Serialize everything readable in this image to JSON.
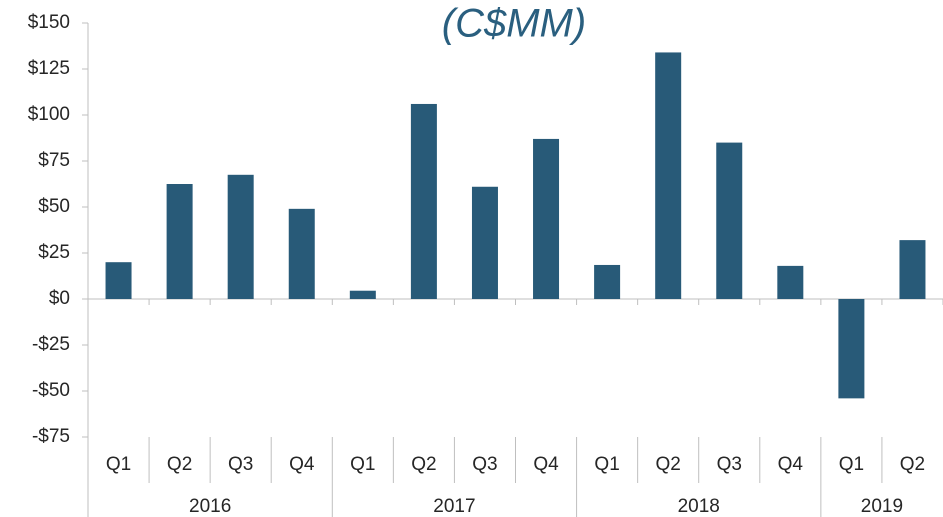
{
  "chart_data": {
    "type": "bar",
    "title": "(C$MM)",
    "color": "#285a78",
    "groups": [
      {
        "label": "2016",
        "categories": [
          "Q1",
          "Q2",
          "Q3",
          "Q4"
        ],
        "values": [
          20,
          62.5,
          67.5,
          49
        ]
      },
      {
        "label": "2017",
        "categories": [
          "Q1",
          "Q2",
          "Q3",
          "Q4"
        ],
        "values": [
          4.5,
          106,
          61,
          87
        ]
      },
      {
        "label": "2018",
        "categories": [
          "Q1",
          "Q2",
          "Q3",
          "Q4"
        ],
        "values": [
          18.5,
          134,
          85,
          18
        ]
      },
      {
        "label": "2019",
        "categories": [
          "Q1",
          "Q2"
        ],
        "values": [
          -54,
          32
        ]
      }
    ],
    "ylim": [
      -75,
      150
    ],
    "yticks": [
      {
        "value": -75,
        "label": "-$75"
      },
      {
        "value": -50,
        "label": "-$50"
      },
      {
        "value": -25,
        "label": "-$25"
      },
      {
        "value": 0,
        "label": "$0"
      },
      {
        "value": 25,
        "label": "$25"
      },
      {
        "value": 50,
        "label": "$50"
      },
      {
        "value": 75,
        "label": "$75"
      },
      {
        "value": 100,
        "label": "$100"
      },
      {
        "value": 125,
        "label": "$125"
      },
      {
        "value": 150,
        "label": "$150"
      }
    ]
  }
}
